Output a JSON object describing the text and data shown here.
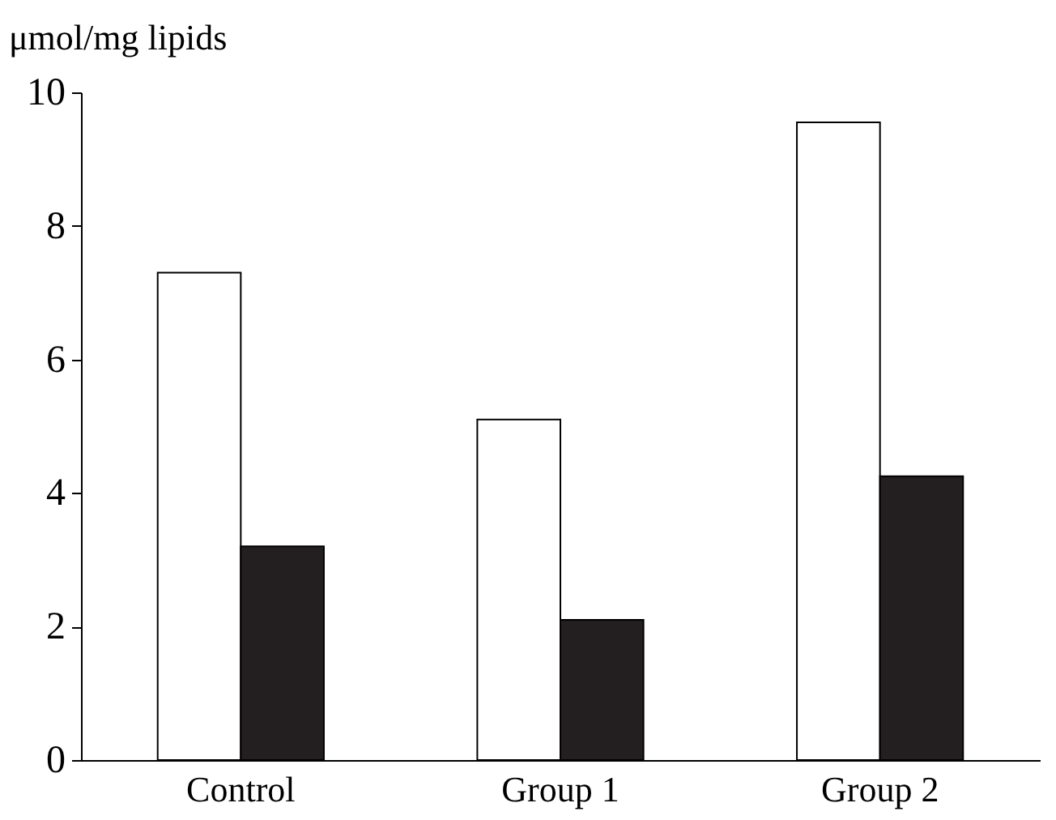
{
  "chart_data": {
    "type": "bar",
    "ylabel": "μmol/mg lipids",
    "categories": [
      "Control",
      "Group 1",
      "Group 2"
    ],
    "series": [
      {
        "color": "#ffffff",
        "values": [
          7.3,
          5.1,
          9.55
        ]
      },
      {
        "color": "#231f20",
        "values": [
          3.2,
          2.1,
          4.25
        ]
      }
    ],
    "ylim": [
      0,
      10
    ],
    "yticks": [
      0,
      2,
      4,
      6,
      8,
      10
    ],
    "grid": false,
    "legend": false
  }
}
